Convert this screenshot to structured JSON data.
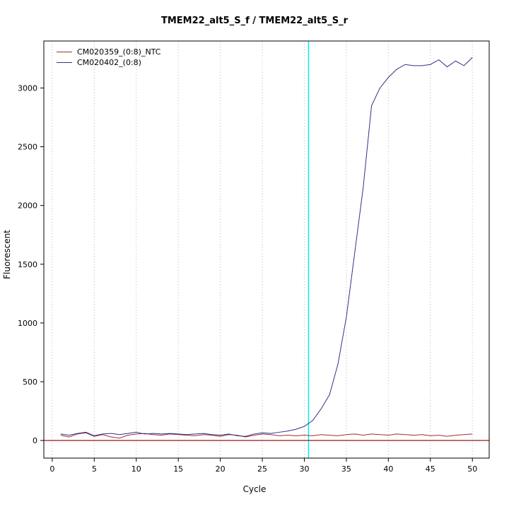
{
  "title": "TMEM22_alt5_S_f / TMEM22_alt5_S_r",
  "xlabel": "Cycle",
  "ylabel": "Fluorescent",
  "legend": {
    "items": [
      {
        "label": "CM020359_(0:8)_NTC",
        "color": "#993333"
      },
      {
        "label": "CM020402_(0:8)",
        "color": "#333388"
      }
    ]
  },
  "chart_data": {
    "type": "line",
    "title": "TMEM22_alt5_S_f / TMEM22_alt5_S_r",
    "xlabel": "Cycle",
    "ylabel": "Fluorescent",
    "xlim": [
      -1,
      52
    ],
    "ylim": [
      -150,
      3400
    ],
    "x_ticks": [
      0,
      5,
      10,
      15,
      20,
      25,
      30,
      35,
      40,
      45,
      50
    ],
    "y_ticks": [
      0,
      500,
      1000,
      1500,
      2000,
      2500,
      3000
    ],
    "grid": "vertical-dotted",
    "legend_position": "top-left",
    "x": [
      1,
      2,
      3,
      4,
      5,
      6,
      7,
      8,
      9,
      10,
      11,
      12,
      13,
      14,
      15,
      16,
      17,
      18,
      19,
      20,
      21,
      22,
      23,
      24,
      25,
      26,
      27,
      28,
      29,
      30,
      31,
      32,
      33,
      34,
      35,
      36,
      37,
      38,
      39,
      40,
      41,
      42,
      43,
      44,
      45,
      46,
      47,
      48,
      49,
      50
    ],
    "series": [
      {
        "name": "CM020359_(0:8)_NTC",
        "color": "#993333",
        "values": [
          45,
          30,
          55,
          65,
          35,
          50,
          30,
          20,
          45,
          55,
          60,
          50,
          45,
          55,
          50,
          45,
          40,
          50,
          45,
          35,
          50,
          45,
          30,
          45,
          55,
          50,
          40,
          45,
          40,
          45,
          40,
          50,
          45,
          40,
          50,
          55,
          45,
          55,
          50,
          45,
          55,
          50,
          45,
          50,
          40,
          45,
          35,
          45,
          50,
          55
        ]
      },
      {
        "name": "CM020402_(0:8)",
        "color": "#333388",
        "values": [
          55,
          45,
          60,
          70,
          40,
          55,
          60,
          50,
          60,
          70,
          55,
          60,
          55,
          60,
          55,
          50,
          55,
          60,
          50,
          45,
          55,
          40,
          35,
          55,
          65,
          60,
          70,
          80,
          95,
          120,
          170,
          270,
          390,
          650,
          1050,
          1600,
          2150,
          2850,
          3000,
          3090,
          3160,
          3200,
          3190,
          3190,
          3200,
          3240,
          3180,
          3230,
          3190,
          3260
        ]
      }
    ],
    "vline": {
      "x": 30.5,
      "color": "#00eeee",
      "label": "threshold-cycle-line"
    },
    "hline": {
      "y": 0,
      "color": "#8b0000",
      "label": "baseline-threshold-line"
    },
    "colors": {
      "grid": "#c9b6b6",
      "axis": "#000000",
      "background": "#ffffff"
    }
  }
}
